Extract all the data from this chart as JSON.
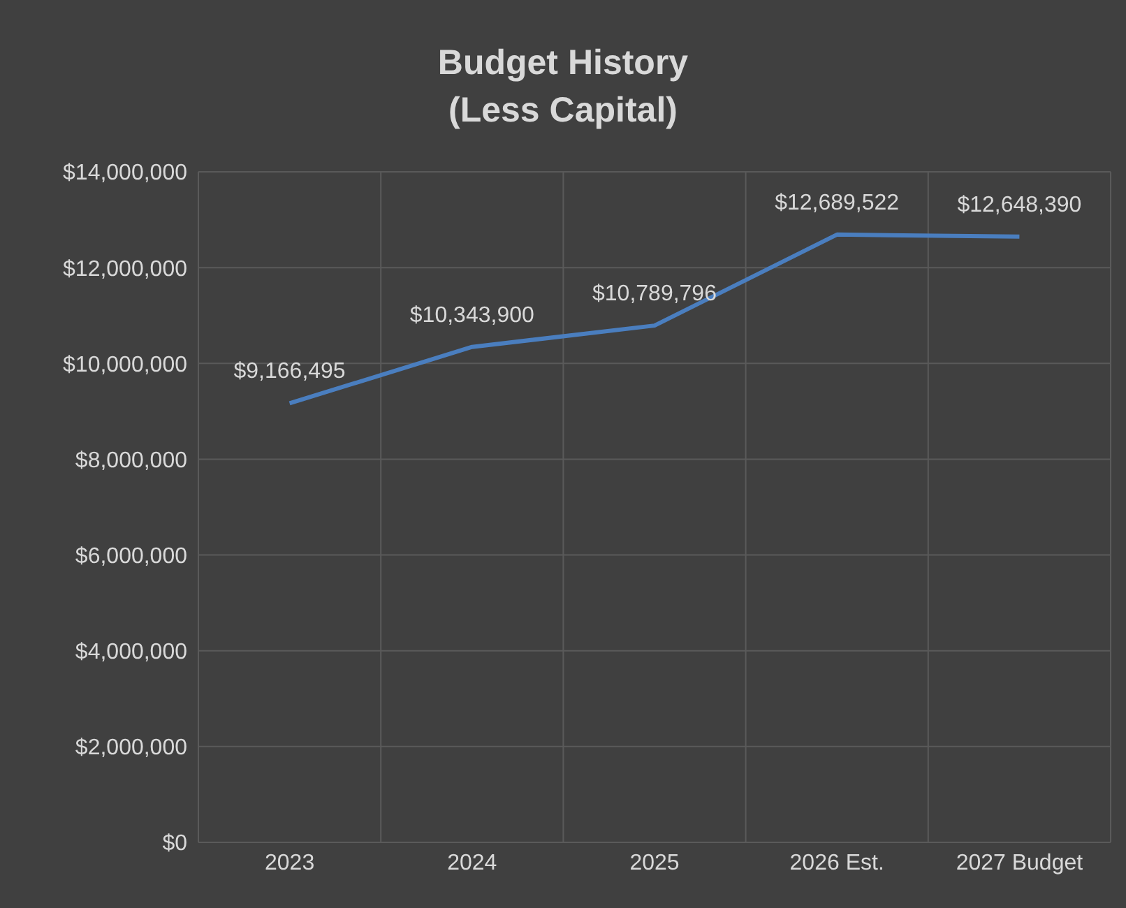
{
  "chart_data": {
    "type": "line",
    "title": "Budget History",
    "subtitle": "(Less Capital)",
    "categories": [
      "2023",
      "2024",
      "2025",
      "2026 Est.",
      "2027 Budget"
    ],
    "series": [
      {
        "color": "#4a7ebf",
        "values": [
          9166495,
          10343900,
          10789796,
          12689522,
          12648390
        ],
        "value_labels": [
          "$9,166,495",
          "$10,343,900",
          "$10,789,796",
          "$12,689,522",
          "$12,648,390"
        ]
      }
    ],
    "ylim": [
      0,
      14000000
    ],
    "yticks": [
      {
        "value": 0,
        "label": "$0"
      },
      {
        "value": 2000000,
        "label": "$2,000,000"
      },
      {
        "value": 4000000,
        "label": "$4,000,000"
      },
      {
        "value": 6000000,
        "label": "$6,000,000"
      },
      {
        "value": 8000000,
        "label": "$8,000,000"
      },
      {
        "value": 10000000,
        "label": "$10,000,000"
      },
      {
        "value": 12000000,
        "label": "$12,000,000"
      },
      {
        "value": 14000000,
        "label": "$14,000,000"
      }
    ],
    "grid": true,
    "marker": "none",
    "line_style": "solid"
  }
}
